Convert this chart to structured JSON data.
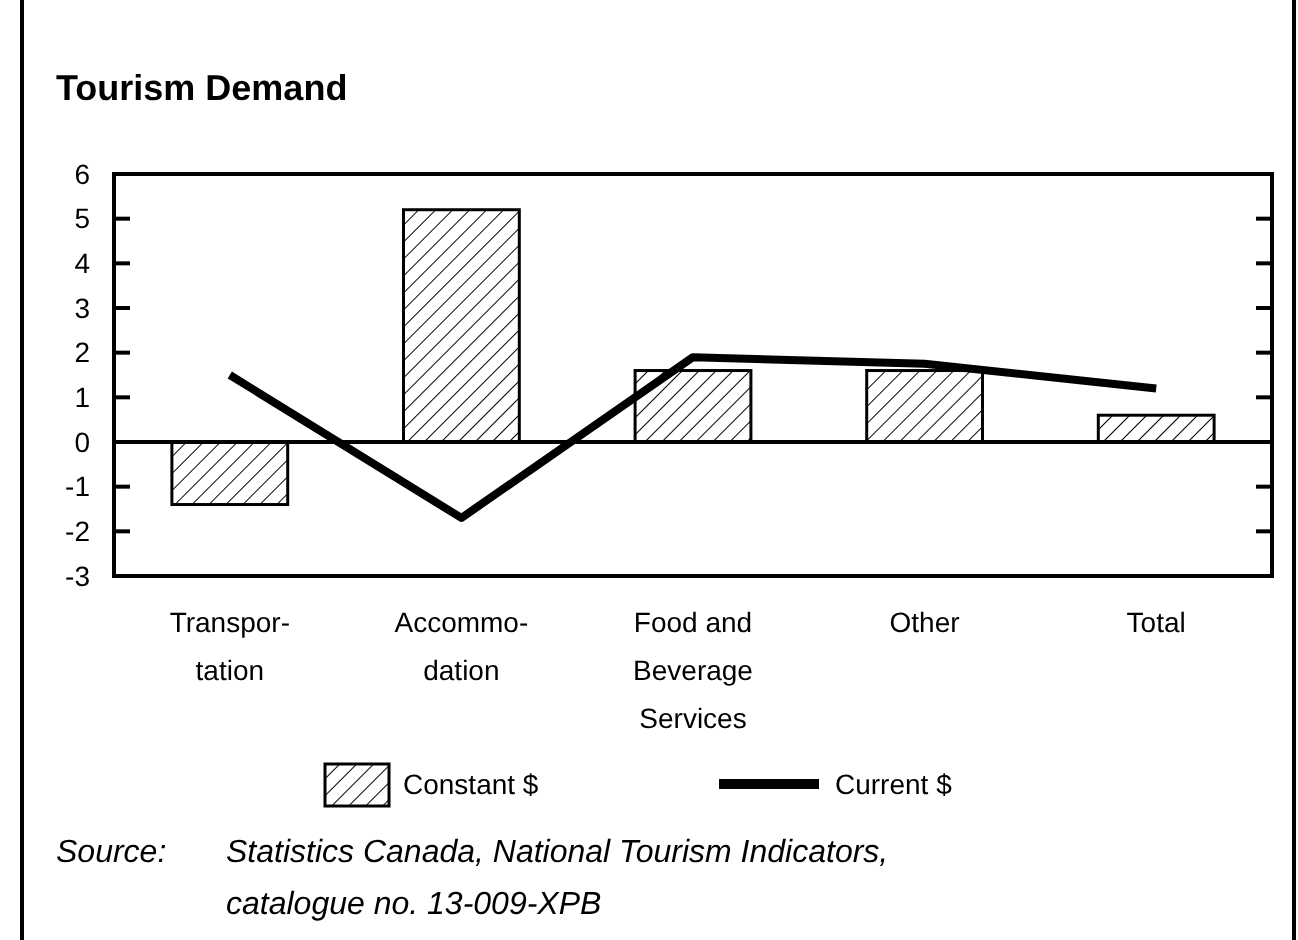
{
  "chart_data": {
    "type": "bar",
    "title": "Tourism Demand",
    "categories": [
      "Transpor-\ntation",
      "Accommo-\ndation",
      "Food and\nBeverage\nServices",
      "Other",
      "Total"
    ],
    "series": [
      {
        "name": "Constant $",
        "color": "#000000",
        "values": [
          -1.4,
          5.2,
          1.6,
          1.6,
          0.6
        ]
      },
      {
        "name": "Current $",
        "type": "line",
        "color": "#000000",
        "values": [
          1.5,
          -1.7,
          1.9,
          1.75,
          1.2
        ]
      }
    ],
    "ylim": [
      -3,
      6
    ],
    "yticks": [
      -3,
      -2,
      -1,
      0,
      1,
      2,
      3,
      4,
      5,
      6
    ],
    "legend": "bottom",
    "marker": "none",
    "line_style": "solid",
    "annotations": [
      "Source:\tStatistics Canada, National Tourism Indicators,\ncatalogue no. 13-009-XPB"
    ]
  }
}
